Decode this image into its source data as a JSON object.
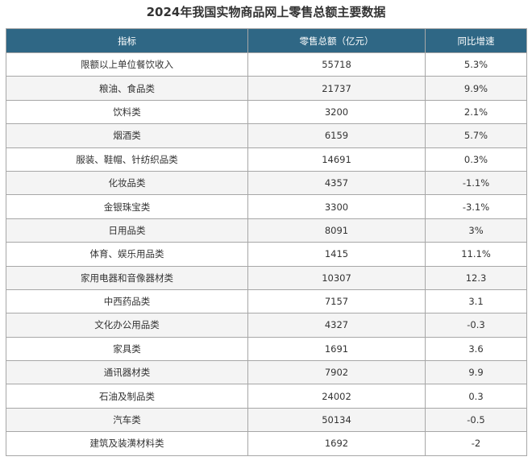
{
  "title": "2024年我国实物商品网上零售总额主要数据",
  "chart_data": {
    "type": "table",
    "title": "2024年我国实物商品网上零售总额主要数据",
    "columns": [
      "指标",
      "零售总额（亿元）",
      "同比增速"
    ],
    "rows": [
      [
        "限额以上单位餐饮收入",
        "55718",
        "5.3%"
      ],
      [
        "粮油、食品类",
        "21737",
        "9.9%"
      ],
      [
        "饮料类",
        "3200",
        "2.1%"
      ],
      [
        "烟酒类",
        "6159",
        "5.7%"
      ],
      [
        "服装、鞋帽、针纺织品类",
        "14691",
        "0.3%"
      ],
      [
        "化妆品类",
        "4357",
        "-1.1%"
      ],
      [
        "金银珠宝类",
        "3300",
        "-3.1%"
      ],
      [
        "日用品类",
        "8091",
        "3%"
      ],
      [
        "体育、娱乐用品类",
        "1415",
        "11.1%"
      ],
      [
        "家用电器和音像器材类",
        "10307",
        "12.3"
      ],
      [
        "中西药品类",
        "7157",
        "3.1"
      ],
      [
        "文化办公用品类",
        "4327",
        "-0.3"
      ],
      [
        "家具类",
        "1691",
        "3.6"
      ],
      [
        "通讯器材类",
        "7902",
        "9.9"
      ],
      [
        "石油及制品类",
        "24002",
        "0.3"
      ],
      [
        "汽车类",
        "50134",
        "-0.5"
      ],
      [
        "建筑及装潢材料类",
        "1692",
        "-2"
      ]
    ]
  },
  "colors": {
    "header_bg": "#2f6785",
    "header_text": "#ffffff",
    "stripe": "#f4f4f4",
    "border": "#a7a7a7"
  }
}
